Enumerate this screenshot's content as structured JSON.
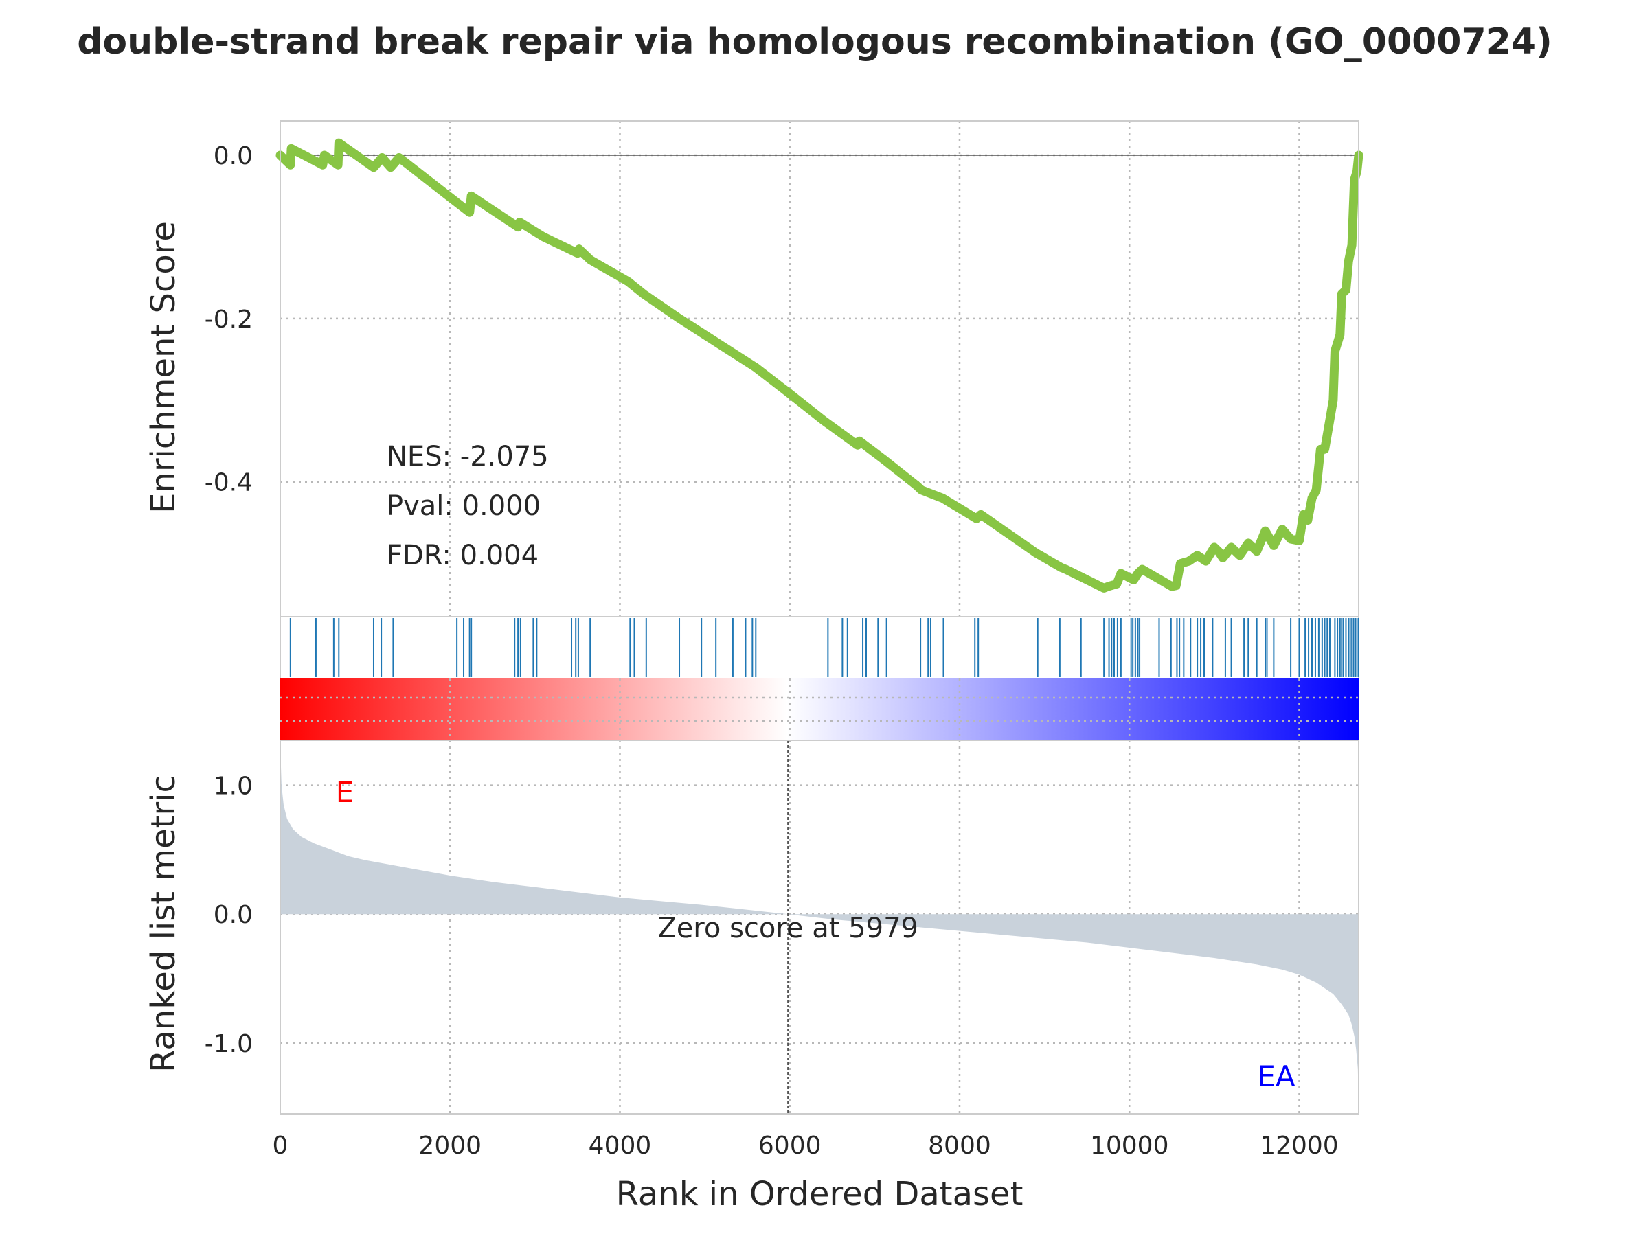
{
  "chart_data": {
    "type": "line",
    "title": "double-strand break repair via homologous recombination (GO_0000724)",
    "xlabel": "Rank in Ordered Dataset",
    "xlim": [
      0,
      12700
    ],
    "x_ticks": [
      0,
      2000,
      4000,
      6000,
      8000,
      10000,
      12000
    ],
    "colors": {
      "running_es": "#88c544",
      "hits": "#1f77b4",
      "ranked_fill": "#c9d2db",
      "pos_phenotype": "#ff0000",
      "neg_phenotype": "#0000ff"
    },
    "enrichment_panel": {
      "ylabel": "Enrichment Score",
      "ylim": [
        -0.565,
        0.042
      ],
      "y_ticks": [
        {
          "v": 0.0,
          "label": "0.0"
        },
        {
          "v": -0.2,
          "label": "-0.2"
        },
        {
          "v": -0.4,
          "label": "-0.4"
        }
      ],
      "stats": {
        "nes": "NES: -2.075",
        "pval": "Pval: 0.000",
        "fdr": "FDR: 0.004"
      },
      "running_es": {
        "x": [
          0,
          120,
          130,
          500,
          520,
          680,
          690,
          1100,
          1200,
          1300,
          1400,
          2080,
          2230,
          2250,
          2800,
          2820,
          3100,
          3500,
          3520,
          3650,
          4100,
          4280,
          4700,
          5600,
          6000,
          6400,
          6800,
          6820,
          7100,
          7500,
          7550,
          7800,
          8200,
          8250,
          8900,
          8950,
          9200,
          9250,
          9700,
          9750,
          9850,
          9900,
          10050,
          10100,
          10150,
          10500,
          10550,
          10600,
          10700,
          10800,
          10900,
          11000,
          11050,
          11100,
          11200,
          11300,
          11400,
          11500,
          11600,
          11700,
          11800,
          11900,
          12000,
          12050,
          12100,
          12150,
          12200,
          12250,
          12300,
          12400,
          12420,
          12480,
          12500,
          12550,
          12580,
          12620,
          12650,
          12680,
          12700
        ],
        "y": [
          0.0,
          -0.012,
          0.008,
          -0.012,
          0.0,
          -0.012,
          0.015,
          -0.015,
          -0.003,
          -0.015,
          -0.003,
          -0.058,
          -0.07,
          -0.05,
          -0.088,
          -0.082,
          -0.1,
          -0.12,
          -0.115,
          -0.128,
          -0.155,
          -0.17,
          -0.2,
          -0.26,
          -0.292,
          -0.325,
          -0.355,
          -0.35,
          -0.372,
          -0.405,
          -0.41,
          -0.42,
          -0.445,
          -0.44,
          -0.487,
          -0.49,
          -0.505,
          -0.507,
          -0.53,
          -0.528,
          -0.525,
          -0.512,
          -0.52,
          -0.512,
          -0.507,
          -0.528,
          -0.527,
          -0.5,
          -0.497,
          -0.49,
          -0.497,
          -0.48,
          -0.485,
          -0.493,
          -0.48,
          -0.49,
          -0.475,
          -0.485,
          -0.46,
          -0.478,
          -0.458,
          -0.47,
          -0.472,
          -0.44,
          -0.447,
          -0.42,
          -0.41,
          -0.36,
          -0.36,
          -0.3,
          -0.24,
          -0.22,
          -0.17,
          -0.165,
          -0.13,
          -0.11,
          -0.03,
          -0.02,
          0.0
        ]
      }
    },
    "hits_panel": {
      "positions": [
        120,
        420,
        630,
        690,
        1100,
        1190,
        1330,
        2080,
        2160,
        2230,
        2250,
        2760,
        2800,
        2830,
        2980,
        3020,
        3430,
        3480,
        3510,
        3650,
        4120,
        4170,
        4310,
        4700,
        4960,
        5130,
        5330,
        5480,
        5560,
        5600,
        6450,
        6620,
        6680,
        6860,
        6900,
        7040,
        7140,
        7540,
        7630,
        7660,
        7810,
        8180,
        8220,
        8920,
        9180,
        9430,
        9700,
        9760,
        9790,
        9820,
        9860,
        9900,
        10020,
        10040,
        10070,
        10100,
        10120,
        10350,
        10490,
        10560,
        10590,
        10640,
        10720,
        10800,
        10840,
        10880,
        10980,
        11130,
        11200,
        11350,
        11400,
        11500,
        11600,
        11620,
        11700,
        11900,
        12000,
        12070,
        12110,
        12150,
        12190,
        12230,
        12270,
        12300,
        12330,
        12360,
        12420,
        12450,
        12480,
        12500,
        12520,
        12550,
        12580,
        12600,
        12620,
        12640,
        12660,
        12680,
        12700
      ]
    },
    "ranked_panel": {
      "ylabel": "Ranked list metric",
      "ylim": [
        -1.55,
        1.35
      ],
      "y_ticks": [
        {
          "v": 1.0,
          "label": "1.0"
        },
        {
          "v": 0.0,
          "label": "0.0"
        },
        {
          "v": -1.0,
          "label": "-1.0"
        }
      ],
      "pos_label": "E",
      "neg_label": "EA",
      "zero_score_rank": 5979,
      "zero_text": "Zero score at 5979",
      "metric": {
        "x": [
          0,
          15,
          40,
          80,
          150,
          250,
          400,
          600,
          800,
          1000,
          1500,
          2000,
          2500,
          3000,
          3500,
          4000,
          4500,
          5000,
          5500,
          5979,
          6500,
          7000,
          7500,
          8000,
          8500,
          9000,
          9500,
          10000,
          10500,
          11000,
          11500,
          11800,
          12000,
          12200,
          12400,
          12500,
          12580,
          12620,
          12650,
          12670,
          12690,
          12700
        ],
        "y": [
          1.3,
          1.0,
          0.85,
          0.74,
          0.66,
          0.6,
          0.55,
          0.5,
          0.45,
          0.42,
          0.36,
          0.3,
          0.25,
          0.21,
          0.17,
          0.13,
          0.1,
          0.07,
          0.035,
          0.0,
          -0.04,
          -0.07,
          -0.1,
          -0.13,
          -0.16,
          -0.19,
          -0.22,
          -0.26,
          -0.3,
          -0.34,
          -0.39,
          -0.43,
          -0.47,
          -0.53,
          -0.62,
          -0.7,
          -0.78,
          -0.86,
          -0.95,
          -1.05,
          -1.2,
          -1.5
        ]
      }
    }
  }
}
